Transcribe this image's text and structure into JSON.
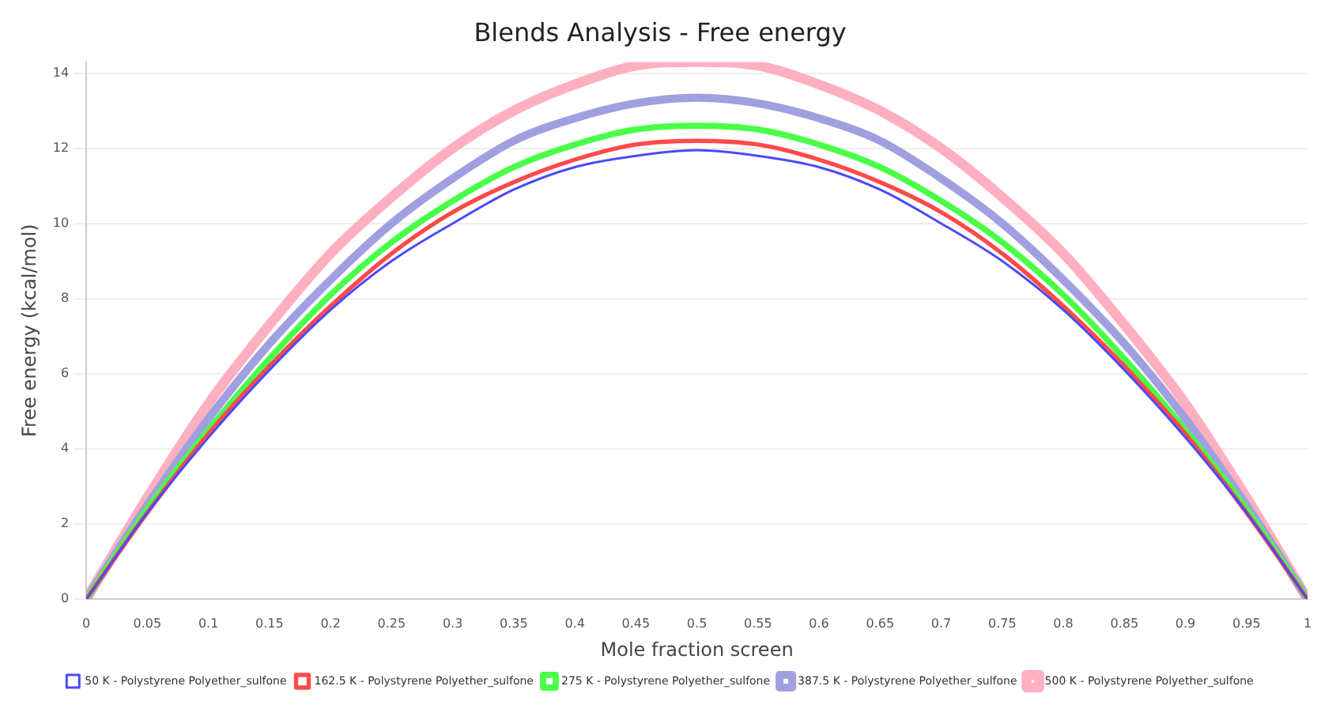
{
  "chart_data": {
    "type": "line",
    "title": "Blends Analysis - Free energy",
    "xlabel": "Mole fraction screen",
    "ylabel": "Free energy (kcal/mol)",
    "x": [
      0,
      0.05,
      0.1,
      0.15,
      0.2,
      0.25,
      0.3,
      0.35,
      0.4,
      0.45,
      0.5,
      0.55,
      0.6,
      0.65,
      0.7,
      0.75,
      0.8,
      0.85,
      0.9,
      0.95,
      1
    ],
    "xlim": [
      0,
      1
    ],
    "xticks": [
      0,
      0.05,
      0.1,
      0.15,
      0.2,
      0.25,
      0.3,
      0.35,
      0.4,
      0.45,
      0.5,
      0.55,
      0.6,
      0.65,
      0.7,
      0.75,
      0.8,
      0.85,
      0.9,
      0.95,
      1
    ],
    "ylim": [
      0,
      14.3
    ],
    "yticks": [
      0,
      2,
      4,
      6,
      8,
      10,
      12,
      14
    ],
    "grid": "y",
    "legend": "bottom",
    "marker": "none",
    "series": [
      {
        "name": "50 K - Polystyrene Polyether_sulfone",
        "color": "#4a4aff",
        "values": [
          0,
          2.3,
          4.3,
          6.1,
          7.7,
          9.0,
          10.0,
          10.9,
          11.5,
          11.8,
          11.95,
          11.8,
          11.5,
          10.9,
          10.0,
          9.0,
          7.7,
          6.1,
          4.3,
          2.3,
          0
        ]
      },
      {
        "name": "162.5 K - Polystyrene Polyether_sulfone",
        "color": "#ff4a4a",
        "values": [
          0,
          2.3,
          4.4,
          6.2,
          7.8,
          9.2,
          10.3,
          11.1,
          11.7,
          12.1,
          12.2,
          12.1,
          11.7,
          11.1,
          10.3,
          9.2,
          7.8,
          6.2,
          4.4,
          2.3,
          0
        ]
      },
      {
        "name": "275 K - Polystyrene Polyether_sulfone",
        "color": "#4aff4a",
        "values": [
          0,
          2.4,
          4.5,
          6.4,
          8.1,
          9.5,
          10.6,
          11.5,
          12.1,
          12.5,
          12.6,
          12.5,
          12.1,
          11.5,
          10.6,
          9.5,
          8.1,
          6.4,
          4.5,
          2.4,
          0
        ]
      },
      {
        "name": "387.5 K - Polystyrene Polyether_sulfone",
        "color": "#a0a0e0",
        "values": [
          0,
          2.5,
          4.8,
          6.8,
          8.5,
          10.0,
          11.2,
          12.2,
          12.8,
          13.2,
          13.35,
          13.2,
          12.8,
          12.2,
          11.2,
          10.0,
          8.5,
          6.8,
          4.8,
          2.5,
          0
        ]
      },
      {
        "name": "500 K - Polystyrene Polyether_sulfone",
        "color": "#ffb0c0",
        "values": [
          0,
          2.7,
          5.2,
          7.3,
          9.2,
          10.7,
          12.0,
          13.0,
          13.7,
          14.2,
          14.3,
          14.2,
          13.7,
          13.0,
          12.0,
          10.7,
          9.2,
          7.3,
          5.2,
          2.7,
          0
        ]
      }
    ]
  }
}
